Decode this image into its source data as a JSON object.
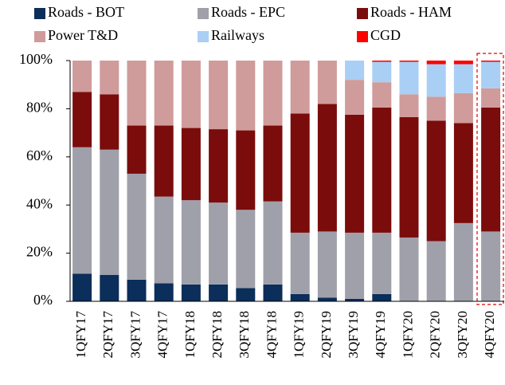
{
  "chart_data": {
    "type": "stacked_bar_100",
    "categories": [
      "1QFY17",
      "2QFY17",
      "3QFY17",
      "4QFY17",
      "1QFY18",
      "2QFY18",
      "3QFY18",
      "4QFY18",
      "1QFY19",
      "2QFY19",
      "3QFY19",
      "4QFY19",
      "1QFY20",
      "2QFY20",
      "3QFY20",
      "4QFY20"
    ],
    "series": [
      {
        "name": "Roads - BOT",
        "color": "#0b2e5a",
        "values": [
          11.5,
          11,
          9,
          7.5,
          7,
          7,
          5.5,
          7,
          3,
          1.5,
          1,
          3,
          0,
          0,
          0,
          0
        ]
      },
      {
        "name": "Roads - EPC",
        "color": "#a0a0aa",
        "values": [
          52.5,
          52,
          44,
          36,
          35,
          34,
          32.5,
          34.5,
          25.5,
          27.5,
          27.5,
          25.5,
          26.5,
          25,
          32.5,
          29
        ]
      },
      {
        "name": "Roads - HAM",
        "color": "#7b0c0c",
        "values": [
          23,
          23,
          20,
          29.5,
          30,
          30.5,
          33,
          31.5,
          49.5,
          53,
          49,
          52,
          50,
          50,
          41.5,
          51.5
        ]
      },
      {
        "name": "Power T&D",
        "color": "#d09b9b",
        "values": [
          13,
          14,
          27,
          27,
          28,
          28.5,
          29,
          27,
          22,
          18,
          14.5,
          10.5,
          9.5,
          10,
          12.5,
          8
        ]
      },
      {
        "name": "Railways",
        "color": "#a9cff5",
        "values": [
          0,
          0,
          0,
          0,
          0,
          0,
          0,
          0,
          0,
          0,
          8,
          8.5,
          13.5,
          13.5,
          12,
          11
        ]
      },
      {
        "name": "CGD",
        "color": "#ff0000",
        "values": [
          0,
          0,
          0,
          0,
          0,
          0,
          0,
          0,
          0,
          0,
          0,
          0.5,
          0.5,
          1.5,
          1.5,
          0.5
        ]
      }
    ],
    "ylim": [
      0,
      100
    ],
    "yticks": [
      {
        "value": 0,
        "label": "0%"
      },
      {
        "value": 20,
        "label": "20%"
      },
      {
        "value": 40,
        "label": "40%"
      },
      {
        "value": 60,
        "label": "60%"
      },
      {
        "value": 80,
        "label": "80%"
      },
      {
        "value": 100,
        "label": "100%"
      }
    ]
  }
}
